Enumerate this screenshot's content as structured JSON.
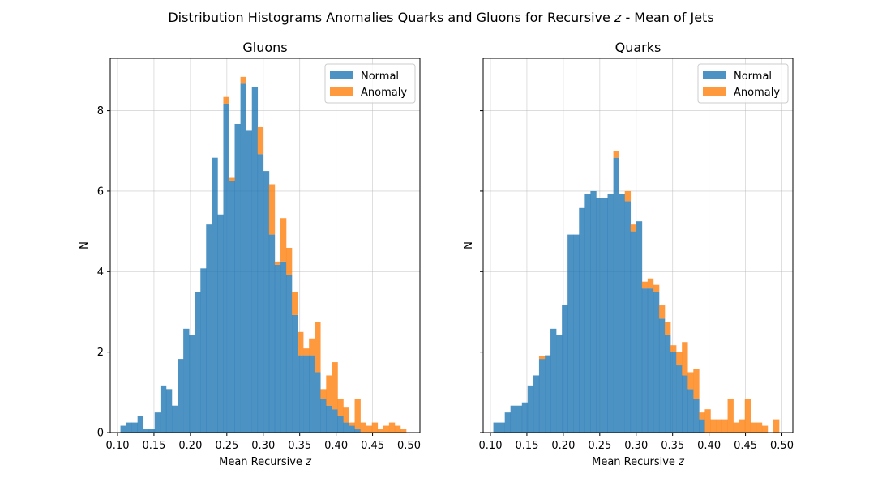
{
  "figure": {
    "title": "Distribution Histograms Anomalies Quarks and Gluons for Recursive z - Mean of Jets",
    "title_prefix": "Distribution Histograms Anomalies Quarks and Gluons for Recursive ",
    "title_var": "z",
    "title_suffix": " - Mean of Jets"
  },
  "chart_data": [
    {
      "type": "bar",
      "stacked": true,
      "title": "Gluons",
      "xlabel": "Mean Recursive z",
      "xlabel_prefix": "Mean Recursive ",
      "xlabel_var": "z",
      "ylabel": "N",
      "xlim": [
        0.09,
        0.515
      ],
      "ylim": [
        0,
        9.3
      ],
      "xticks": [
        "0.10",
        "0.15",
        "0.20",
        "0.25",
        "0.30",
        "0.35",
        "0.40",
        "0.45",
        "0.50"
      ],
      "yticks": [
        "0",
        "2",
        "4",
        "6",
        "8"
      ],
      "grid": true,
      "legend_position": "top-right",
      "bin_width": 0.00784,
      "x": [
        0.1079,
        0.1157,
        0.1236,
        0.1314,
        0.1393,
        0.1471,
        0.1549,
        0.1628,
        0.1706,
        0.1785,
        0.1863,
        0.1942,
        0.202,
        0.2098,
        0.2177,
        0.2255,
        0.2334,
        0.2412,
        0.2491,
        0.2569,
        0.2647,
        0.2726,
        0.2804,
        0.2883,
        0.2961,
        0.304,
        0.3118,
        0.3196,
        0.3275,
        0.3353,
        0.3432,
        0.351,
        0.3589,
        0.3667,
        0.3745,
        0.3824,
        0.3902,
        0.3981,
        0.4059,
        0.4138,
        0.4216,
        0.4294,
        0.4373,
        0.4451,
        0.453,
        0.4608,
        0.4687,
        0.4765,
        0.4843,
        0.4922
      ],
      "series": [
        {
          "name": "Normal",
          "color": "#1f77b4",
          "values": [
            0.17,
            0.25,
            0.25,
            0.42,
            0.08,
            0.08,
            0.5,
            1.17,
            1.08,
            0.67,
            1.83,
            2.58,
            2.42,
            3.5,
            4.08,
            5.17,
            6.83,
            5.42,
            8.17,
            6.25,
            7.67,
            8.67,
            7.5,
            8.58,
            6.92,
            6.5,
            4.92,
            4.17,
            4.25,
            3.92,
            2.92,
            1.92,
            1.92,
            1.92,
            1.5,
            0.83,
            0.67,
            0.58,
            0.42,
            0.25,
            0.17,
            0.08,
            0.0,
            0.0,
            0.0,
            0.0,
            0.0,
            0.0,
            0.0,
            0.0
          ]
        },
        {
          "name": "Anomaly",
          "color": "#ff7f0e",
          "values": [
            0,
            0,
            0,
            0,
            0,
            0,
            0,
            0,
            0,
            0,
            0,
            0,
            0,
            0,
            0,
            0,
            0,
            0,
            0.17,
            0.08,
            0.0,
            0.17,
            0.0,
            0.0,
            0.67,
            0.0,
            1.25,
            0.08,
            1.08,
            0.67,
            0.58,
            0.58,
            0.17,
            0.42,
            1.25,
            0.25,
            0.75,
            1.17,
            0.42,
            0.37,
            0.08,
            0.75,
            0.25,
            0.17,
            0.25,
            0.08,
            0.17,
            0.25,
            0.17,
            0.08
          ]
        }
      ]
    },
    {
      "type": "bar",
      "stacked": true,
      "title": "Quarks",
      "xlabel": "Mean Recursive z",
      "xlabel_prefix": "Mean Recursive ",
      "xlabel_var": "z",
      "ylabel": "N",
      "xlim": [
        0.09,
        0.515
      ],
      "ylim": [
        0,
        9.3
      ],
      "xticks": [
        "0.10",
        "0.15",
        "0.20",
        "0.25",
        "0.30",
        "0.35",
        "0.40",
        "0.45",
        "0.50"
      ],
      "yticks": [
        "0",
        "2",
        "4",
        "6",
        "8"
      ],
      "grid": true,
      "legend_position": "top-right",
      "bin_width": 0.00784,
      "x": [
        0.1079,
        0.1157,
        0.1236,
        0.1314,
        0.1393,
        0.1471,
        0.1549,
        0.1628,
        0.1706,
        0.1785,
        0.1863,
        0.1942,
        0.202,
        0.2098,
        0.2177,
        0.2255,
        0.2334,
        0.2412,
        0.2491,
        0.2569,
        0.2647,
        0.2726,
        0.2804,
        0.2883,
        0.2961,
        0.304,
        0.3118,
        0.3196,
        0.3275,
        0.3353,
        0.3432,
        0.351,
        0.3589,
        0.3667,
        0.3745,
        0.3824,
        0.3902,
        0.3981,
        0.4059,
        0.4138,
        0.4216,
        0.4294,
        0.4373,
        0.4451,
        0.453,
        0.4608,
        0.4687,
        0.4765,
        0.4843,
        0.4922
      ],
      "series": [
        {
          "name": "Normal",
          "color": "#1f77b4",
          "values": [
            0.25,
            0.25,
            0.5,
            0.67,
            0.67,
            0.75,
            1.17,
            1.42,
            1.83,
            1.92,
            2.58,
            2.42,
            3.17,
            4.92,
            4.92,
            5.58,
            5.92,
            6.0,
            5.83,
            5.83,
            5.92,
            6.83,
            5.92,
            5.75,
            5.0,
            5.25,
            3.58,
            3.58,
            3.5,
            2.83,
            2.42,
            2.0,
            1.67,
            1.42,
            1.08,
            0.83,
            0.33,
            0.0,
            0.0,
            0.0,
            0.0,
            0.0,
            0.0,
            0.0,
            0.0,
            0.0,
            0.0,
            0.0,
            0.0,
            0.0
          ]
        },
        {
          "name": "Anomaly",
          "color": "#ff7f0e",
          "values": [
            0,
            0,
            0,
            0,
            0,
            0,
            0,
            0,
            0.08,
            0.0,
            0.0,
            0.0,
            0.0,
            0.0,
            0.0,
            0.0,
            0.0,
            0.0,
            0.0,
            0.0,
            0.0,
            0.17,
            0.0,
            0.25,
            0.17,
            0.0,
            0.17,
            0.25,
            0.17,
            0.33,
            0.33,
            0.17,
            0.33,
            0.83,
            0.42,
            0.75,
            0.17,
            0.58,
            0.33,
            0.33,
            0.33,
            0.83,
            0.25,
            0.33,
            0.83,
            0.25,
            0.25,
            0.17,
            0.0,
            0.33
          ]
        }
      ]
    }
  ]
}
